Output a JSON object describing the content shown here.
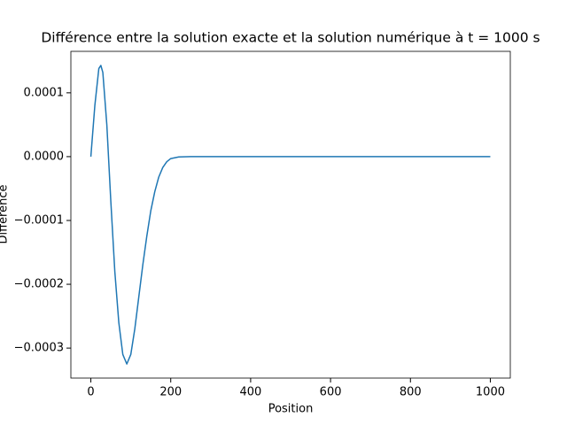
{
  "chart_data": {
    "type": "line",
    "title": "Différence entre la solution exacte et la solution numérique à t = 1000 s",
    "x_label": "Position",
    "y_label": "Différence",
    "series": [
      {
        "name": "Différence",
        "color": "#1f77b4",
        "x": [
          0,
          10,
          20,
          25,
          30,
          40,
          50,
          60,
          70,
          80,
          90,
          100,
          110,
          120,
          130,
          140,
          150,
          160,
          170,
          180,
          190,
          200,
          220,
          250,
          300,
          400,
          500,
          600,
          700,
          800,
          900,
          1000
        ],
        "values": [
          0,
          8e-05,
          0.000138,
          0.000143,
          0.000132,
          5e-05,
          -7e-05,
          -0.00018,
          -0.00026,
          -0.00031,
          -0.000325,
          -0.00031,
          -0.00027,
          -0.00022,
          -0.00017,
          -0.000125,
          -8.5e-05,
          -5.5e-05,
          -3.2e-05,
          -1.7e-05,
          -8e-06,
          -3e-06,
          -5e-07,
          0,
          0,
          0,
          0,
          0,
          0,
          0,
          0,
          0
        ]
      }
    ],
    "xlim": [
      -50,
      1050
    ],
    "ylim": [
      -0.000347,
      0.000165
    ],
    "xticks": [
      0,
      200,
      400,
      600,
      800,
      1000
    ],
    "yticks": [
      {
        "value": 0.0001,
        "label": "0.0001"
      },
      {
        "value": 0,
        "label": "0.0000"
      },
      {
        "value": -0.0001,
        "label": "−0.0001"
      },
      {
        "value": -0.0002,
        "label": "−0.0002"
      },
      {
        "value": -0.0003,
        "label": "−0.0003"
      }
    ],
    "grid": false
  }
}
